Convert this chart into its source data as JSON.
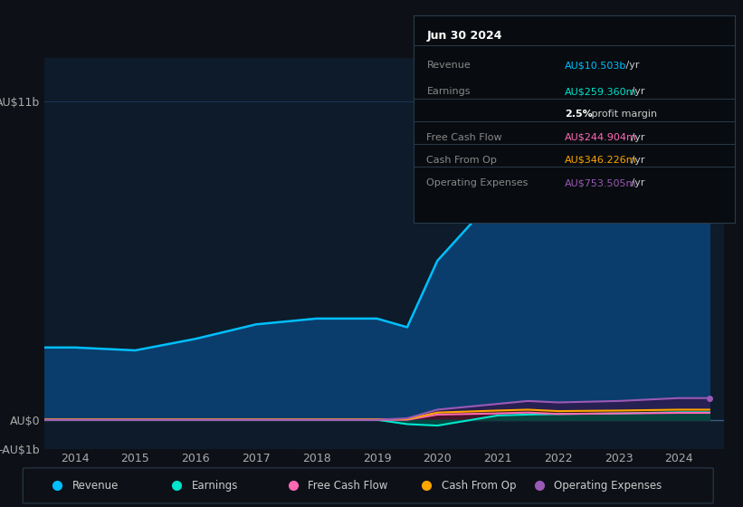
{
  "bg_color": "#0d1117",
  "chart_bg": "#0d1b2a",
  "grid_color": "#1e3a5f",
  "years": [
    2013.5,
    2014,
    2015,
    2016,
    2017,
    2018,
    2019,
    2019.5,
    2020,
    2021,
    2021.5,
    2022,
    2023,
    2024,
    2024.5
  ],
  "revenue": [
    2.5,
    2.5,
    2.4,
    2.8,
    3.3,
    3.5,
    3.5,
    3.2,
    5.5,
    7.8,
    8.2,
    7.2,
    7.5,
    10.5,
    11.0
  ],
  "earnings": [
    0.0,
    0.0,
    0.0,
    0.0,
    0.0,
    0.0,
    0.0,
    -0.15,
    -0.2,
    0.15,
    0.18,
    0.2,
    0.22,
    0.26,
    0.26
  ],
  "free_cash_flow": [
    0.0,
    0.0,
    0.0,
    0.0,
    0.0,
    0.0,
    0.0,
    0.0,
    0.18,
    0.22,
    0.25,
    0.2,
    0.22,
    0.24,
    0.24
  ],
  "cash_from_op": [
    0.02,
    0.02,
    0.02,
    0.02,
    0.02,
    0.02,
    0.02,
    0.02,
    0.25,
    0.32,
    0.35,
    0.3,
    0.32,
    0.35,
    0.35
  ],
  "operating_expenses": [
    0.0,
    0.0,
    0.0,
    0.0,
    0.0,
    0.0,
    0.0,
    0.05,
    0.35,
    0.55,
    0.65,
    0.6,
    0.65,
    0.75,
    0.75
  ],
  "revenue_color": "#00bfff",
  "revenue_fill": "#0a3d6b",
  "earnings_color": "#00e5cc",
  "earnings_fill": "#004d44",
  "free_cash_flow_color": "#ff69b4",
  "free_cash_flow_fill": "#4a1030",
  "cash_from_op_color": "#ffa500",
  "cash_from_op_fill": "#3d2800",
  "operating_expenses_color": "#9b59b6",
  "operating_expenses_fill": "#2d1b4e",
  "ylim_min": -1.0,
  "ylim_max": 12.5,
  "yticks": [
    -1,
    0,
    11
  ],
  "ytick_labels": [
    "-AU$1b",
    "AU$0",
    "AU$11b"
  ],
  "xtick_years": [
    2014,
    2015,
    2016,
    2017,
    2018,
    2019,
    2020,
    2021,
    2022,
    2023,
    2024
  ],
  "table_title": "Jun 30 2024",
  "table_rows": [
    {
      "label": "Revenue",
      "value": "AU$10.503b",
      "suffix": " /yr",
      "color": "#00bfff",
      "bold_val": false
    },
    {
      "label": "Earnings",
      "value": "AU$259.360m",
      "suffix": " /yr",
      "color": "#00e5cc",
      "bold_val": false
    },
    {
      "label": "",
      "value": "2.5%",
      "suffix": " profit margin",
      "color": "#ffffff",
      "bold_val": true
    },
    {
      "label": "Free Cash Flow",
      "value": "AU$244.904m",
      "suffix": " /yr",
      "color": "#ff69b4",
      "bold_val": false
    },
    {
      "label": "Cash From Op",
      "value": "AU$346.226m",
      "suffix": " /yr",
      "color": "#ffa500",
      "bold_val": false
    },
    {
      "label": "Operating Expenses",
      "value": "AU$753.505m",
      "suffix": " /yr",
      "color": "#9b59b6",
      "bold_val": false
    }
  ],
  "legend_items": [
    {
      "label": "Revenue",
      "color": "#00bfff"
    },
    {
      "label": "Earnings",
      "color": "#00e5cc"
    },
    {
      "label": "Free Cash Flow",
      "color": "#ff69b4"
    },
    {
      "label": "Cash From Op",
      "color": "#ffa500"
    },
    {
      "label": "Operating Expenses",
      "color": "#9b59b6"
    }
  ]
}
